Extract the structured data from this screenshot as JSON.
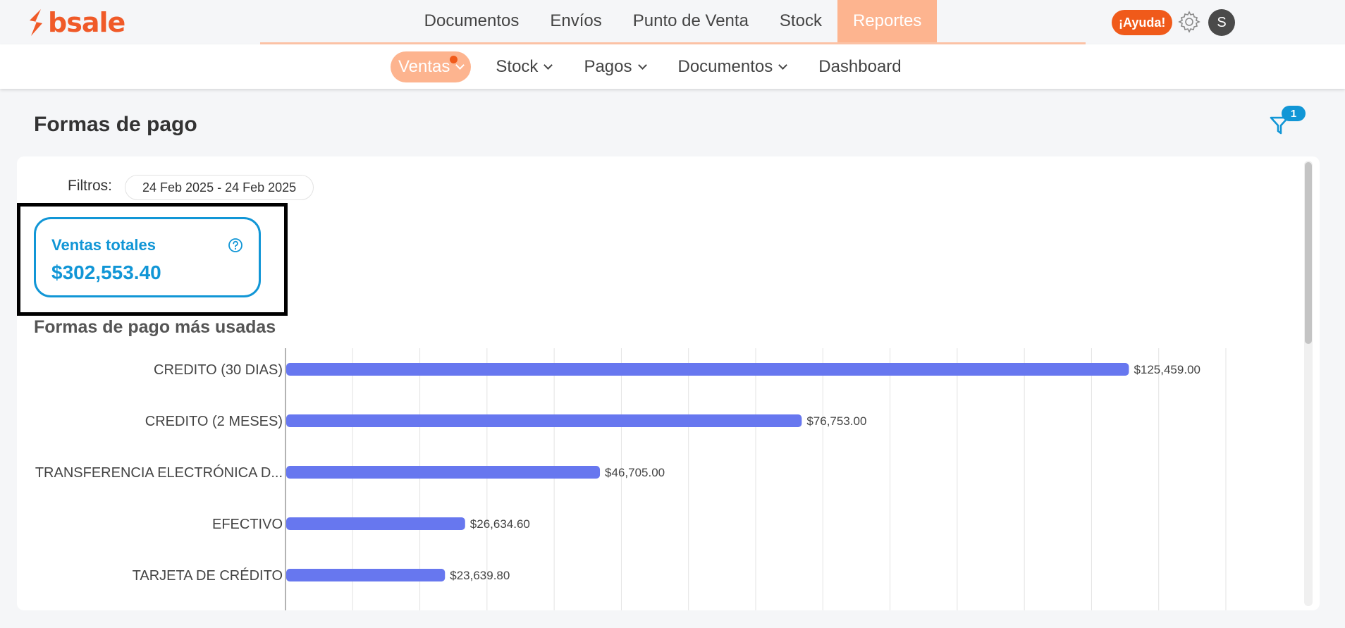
{
  "brand": {
    "name": "bsale",
    "color": "#f05a28"
  },
  "main_nav": {
    "items": [
      {
        "label": "Documentos",
        "active": false
      },
      {
        "label": "Envíos",
        "active": false
      },
      {
        "label": "Punto de Venta",
        "active": false
      },
      {
        "label": "Stock",
        "active": false
      },
      {
        "label": "Reportes",
        "active": true
      }
    ]
  },
  "header_actions": {
    "help_label": "¡Ayuda!",
    "settings_icon": "gear-icon",
    "avatar_initial": "S"
  },
  "sub_nav": {
    "items": [
      {
        "label": "Ventas",
        "active": true,
        "has_dropdown": true,
        "notification_dot": true
      },
      {
        "label": "Stock",
        "active": false,
        "has_dropdown": true
      },
      {
        "label": "Pagos",
        "active": false,
        "has_dropdown": true
      },
      {
        "label": "Documentos",
        "active": false,
        "has_dropdown": true
      },
      {
        "label": "Dashboard",
        "active": false,
        "has_dropdown": false
      }
    ]
  },
  "page": {
    "title": "Formas de pago",
    "filter_icon": "filter-icon",
    "filter_count": "1"
  },
  "filters": {
    "label": "Filtros:",
    "date_range": "24 Feb 2025 - 24 Feb 2025"
  },
  "kpi": {
    "label": "Ventas totales",
    "value": "$302,553.40",
    "help_icon": "question-icon"
  },
  "section": {
    "title": "Formas de pago más usadas"
  },
  "colors": {
    "accent": "#fdb48f",
    "primary_blue": "#1196d6",
    "bar": "#6777ef",
    "alert": "#f05a1a"
  },
  "chart_data": {
    "type": "bar",
    "orientation": "horizontal",
    "categories": [
      "CREDITO (30 DIAS)",
      "CREDITO (2 MESES)",
      "TRANSFERENCIA ELECTRÓNICA D...",
      "EFECTIVO",
      "TARJETA DE CRÉDITO"
    ],
    "values": [
      125459.0,
      76753.0,
      46705.0,
      26634.6,
      23639.8
    ],
    "data_labels": [
      "$125,459.00",
      "$76,753.00",
      "$46,705.00",
      "$26,634.60",
      "$23,639.80"
    ],
    "xlim": [
      0,
      140000
    ],
    "grid": true
  }
}
